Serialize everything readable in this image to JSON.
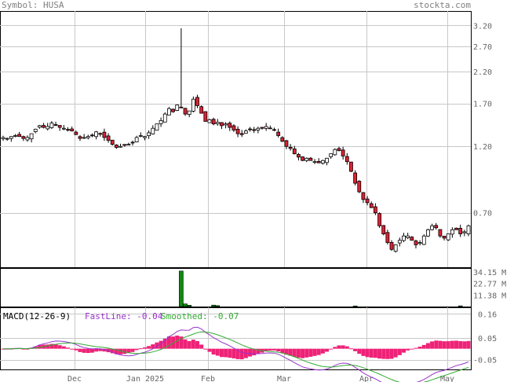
{
  "header": {
    "symbol_label": "Symbol: HUSA",
    "site": "stockta.com"
  },
  "chart_data": [
    {
      "type": "candlestick",
      "scale": "log",
      "grid": true,
      "ylim": [
        0.45,
        3.6
      ],
      "yticks": [
        3.2,
        2.7,
        2.2,
        1.7,
        1.2,
        0.7
      ],
      "xtick_labels": [
        "Dec",
        "Jan 2025",
        "Feb",
        "Mar",
        "Apr",
        "May"
      ],
      "closes": [
        1.29,
        1.28,
        1.3,
        1.31,
        1.3,
        1.28,
        1.29,
        1.33,
        1.38,
        1.42,
        1.4,
        1.41,
        1.45,
        1.43,
        1.4,
        1.39,
        1.37,
        1.36,
        1.32,
        1.28,
        1.29,
        1.3,
        1.31,
        1.35,
        1.33,
        1.29,
        1.26,
        1.22,
        1.19,
        1.2,
        1.21,
        1.22,
        1.24,
        1.29,
        1.31,
        1.3,
        1.34,
        1.39,
        1.44,
        1.48,
        1.56,
        1.63,
        1.59,
        1.68,
        1.64,
        1.56,
        1.6,
        1.76,
        1.67,
        1.57,
        1.47,
        1.49,
        1.44,
        1.46,
        1.42,
        1.44,
        1.4,
        1.37,
        1.33,
        1.32,
        1.36,
        1.38,
        1.37,
        1.39,
        1.39,
        1.41,
        1.39,
        1.37,
        1.31,
        1.25,
        1.2,
        1.18,
        1.13,
        1.1,
        1.07,
        1.09,
        1.07,
        1.06,
        1.05,
        1.07,
        1.09,
        1.13,
        1.17,
        1.16,
        1.11,
        1.06,
        0.98,
        0.89,
        0.83,
        0.78,
        0.76,
        0.73,
        0.7,
        0.63,
        0.59,
        0.55,
        0.52,
        0.54,
        0.56,
        0.58,
        0.58,
        0.56,
        0.54,
        0.55,
        0.58,
        0.61,
        0.63,
        0.62,
        0.58,
        0.57,
        0.59,
        0.61,
        0.61,
        0.59,
        0.6,
        0.63
      ],
      "volume_axis": {
        "ticks": [
          "34.15 M",
          "22.77 M",
          "11.38 M"
        ],
        "ymax": 38
      },
      "volume_spikes": [
        {
          "x_index": 44,
          "value": 35
        },
        {
          "x_index": 45,
          "value": 2.6
        },
        {
          "x_index": 46,
          "value": 1.3
        },
        {
          "x_index": 52,
          "value": 1.4
        },
        {
          "x_index": 53,
          "value": 0.9
        },
        {
          "x_index": 87,
          "value": 0.6
        },
        {
          "x_index": 113,
          "value": 0.7
        }
      ],
      "macd": {
        "title": "MACD(12-26-9)",
        "fastline_label": "FastLine: -0.04",
        "smoothed_label": "Smoothed: -0.07",
        "yticks": [
          0.16,
          0.05,
          -0.05
        ],
        "fast_color": "#9933cc",
        "smooth_color": "#33aa33",
        "hist_color": "#ee2277"
      }
    }
  ],
  "colors": {
    "up": "#ffffff",
    "down": "#dd2233",
    "volume": "#118811",
    "grid": "#c8c8c8",
    "border": "#000000"
  }
}
